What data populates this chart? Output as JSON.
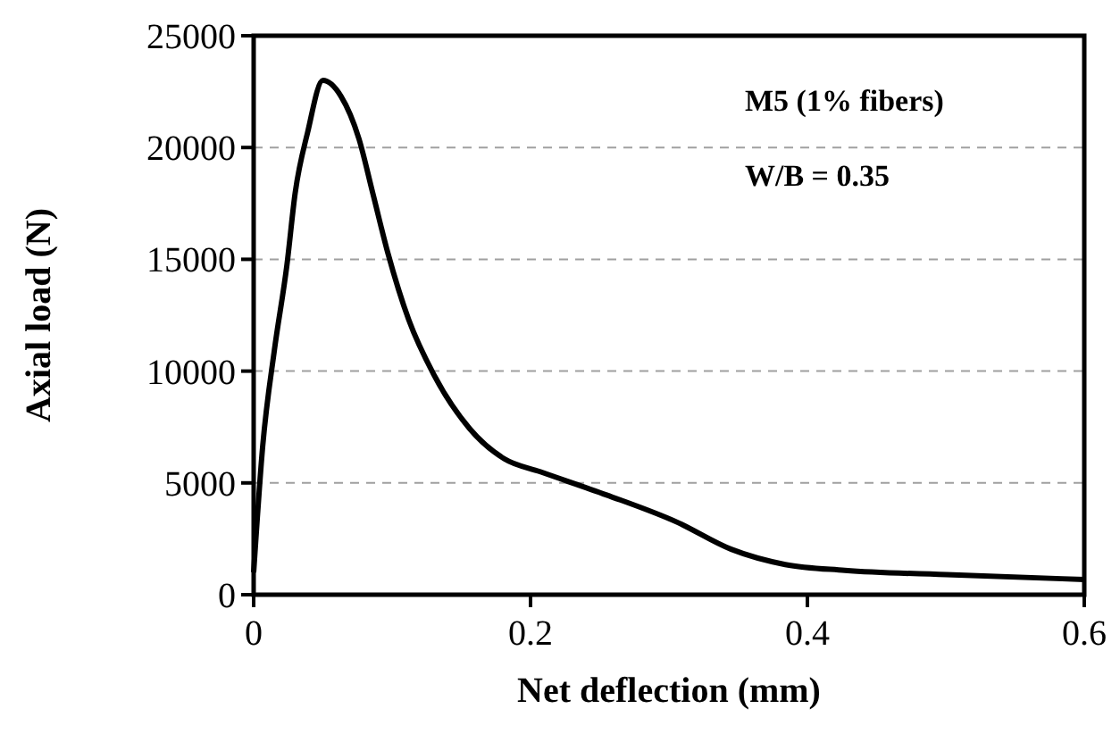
{
  "chart_data": {
    "type": "line",
    "xlabel": "Net deflection (mm)",
    "ylabel": "Axial load (N)",
    "annotations": [
      "M5 (1% fibers)",
      "W/B = 0.35"
    ],
    "xlim": [
      0,
      0.6
    ],
    "xticks": [
      0,
      0.2,
      0.4,
      0.6
    ],
    "ylim": [
      0,
      25000
    ],
    "yticks": [
      0,
      5000,
      10000,
      15000,
      20000,
      25000
    ],
    "grid": "y",
    "marker": "none",
    "line_style": "solid",
    "series": [
      {
        "color": "#000000",
        "x": [
          0,
          0.0065,
          0.015,
          0.024,
          0.03,
          0.039,
          0.05,
          0.063,
          0.076,
          0.086,
          0.097,
          0.112,
          0.13,
          0.156,
          0.181,
          0.207,
          0.255,
          0.306,
          0.345,
          0.384,
          0.427,
          0.505,
          0.6
        ],
        "values": [
          1000,
          6620,
          10950,
          14730,
          17970,
          20680,
          23000,
          22300,
          20400,
          17970,
          15270,
          12300,
          9860,
          7430,
          6080,
          5500,
          4460,
          3240,
          2030,
          1350,
          1090,
          890,
          680
        ]
      }
    ]
  }
}
